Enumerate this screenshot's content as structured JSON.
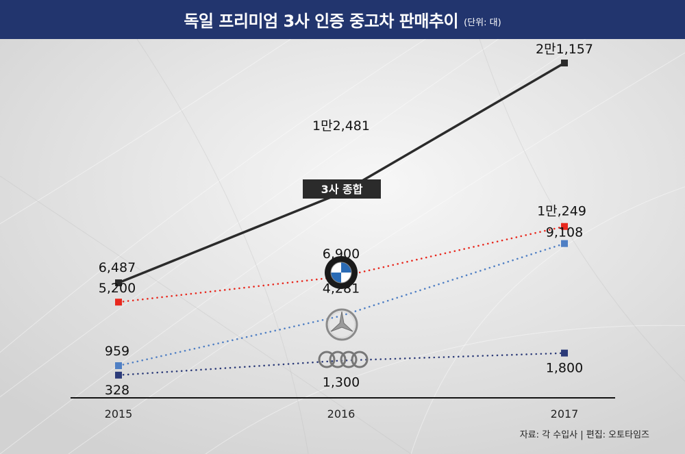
{
  "header": {
    "title": "독일 프리미엄 3사 인증 중고차 판매추이",
    "unit": "(단위: 대)"
  },
  "source": "자료: 각 수입사  |  편집: 오토타임즈",
  "colors": {
    "header_bg": "#22356e",
    "total": "#2b2b2b",
    "bmw": "#e8281e",
    "mercedes": "#4f7fc4",
    "audi": "#2b3a78"
  },
  "chart_data": {
    "type": "line",
    "title": "독일 프리미엄 3사 인증 중고차 판매추이",
    "categories": [
      "2015",
      "2016",
      "2017"
    ],
    "series": [
      {
        "key": "total",
        "name": "3사 종합",
        "values": [
          6487,
          12481,
          21157
        ],
        "labels": [
          "6,487",
          "1만2,481",
          "2만1,157"
        ],
        "color": "#2b2b2b",
        "style": "solid"
      },
      {
        "key": "bmw",
        "name": "BMW",
        "values": [
          5200,
          6900,
          10249
        ],
        "labels": [
          "5,200",
          "6,900",
          "1만,249"
        ],
        "color": "#e8281e",
        "style": "dotted",
        "icon": "bmw-logo"
      },
      {
        "key": "mercedes",
        "name": "Mercedes-Benz",
        "values": [
          959,
          4281,
          9108
        ],
        "labels": [
          "959",
          "4,281",
          "9,108"
        ],
        "color": "#4f7fc4",
        "style": "dotted",
        "icon": "mercedes-logo"
      },
      {
        "key": "audi",
        "name": "Audi",
        "values": [
          328,
          1300,
          1800
        ],
        "labels": [
          "328",
          "1,300",
          "1,800"
        ],
        "color": "#2b3a78",
        "style": "dotted",
        "icon": "audi-logo"
      }
    ],
    "grid": false,
    "legend": "none"
  }
}
